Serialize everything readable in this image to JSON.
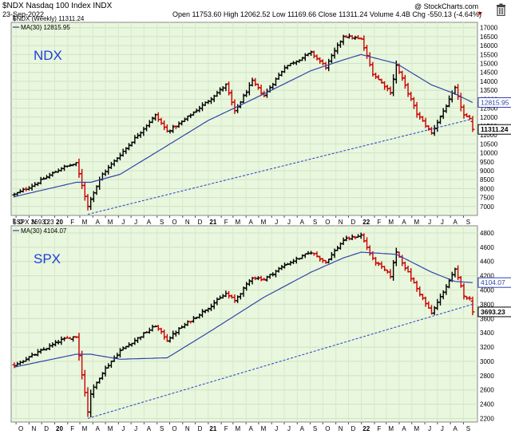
{
  "header": {
    "title": "$NDX Nasdaq 100 Index  INDX",
    "date": "23-Sep-2022",
    "quote": "Open 11753.60  High 12062.52  Low 11169.66  Close 11311.24  Volume 4.4B  Chg -550.13 (-4.64%)",
    "credit": "@ StockCharts.com"
  },
  "icons": {
    "delete": "trash-icon",
    "settings": "triangle-icon",
    "panel_handle": "pin-icon"
  },
  "colors": {
    "panel_bg": "#e8f7dd",
    "up": "#000000",
    "down": "#cc0000",
    "ma": "#3344aa",
    "trend": "#2a3bd0",
    "label": "#1f3fd6"
  },
  "chart_data": [
    {
      "type": "candlestick",
      "panel_label": "NDX",
      "legend": [
        "$NDX (Weekly) 11311.24",
        "MA(30) 12815.95"
      ],
      "ylim": [
        6500,
        17300
      ],
      "y_ticks": [
        7000,
        7500,
        8000,
        8500,
        9000,
        9500,
        10000,
        10500,
        11000,
        11500,
        12000,
        12500,
        13000,
        13500,
        14000,
        14500,
        15000,
        15500,
        16000,
        16500,
        17000
      ],
      "x_ticks": [
        "O",
        "N",
        "D",
        "20",
        "F",
        "M",
        "A",
        "M",
        "J",
        "J",
        "A",
        "S",
        "O",
        "N",
        "D",
        "21",
        "F",
        "M",
        "A",
        "M",
        "J",
        "J",
        "A",
        "S",
        "O",
        "N",
        "D",
        "22",
        "F",
        "M",
        "A",
        "M",
        "J",
        "J",
        "A",
        "S"
      ],
      "x_start": "2019-09-27",
      "x_end": "2022-09-23",
      "anchors": [
        [
          "2019-09-27",
          7660
        ],
        [
          "2019-11-15",
          8250
        ],
        [
          "2020-01-17",
          9150
        ],
        [
          "2020-02-21",
          9400
        ],
        [
          "2020-03-20",
          7000
        ],
        [
          "2020-03-27",
          7450
        ],
        [
          "2020-04-24",
          8800
        ],
        [
          "2020-06-05",
          9900
        ],
        [
          "2020-08-28",
          12100
        ],
        [
          "2020-09-25",
          11200
        ],
        [
          "2020-10-23",
          11600
        ],
        [
          "2020-12-31",
          12900
        ],
        [
          "2021-02-12",
          13800
        ],
        [
          "2021-03-05",
          12300
        ],
        [
          "2021-04-16",
          14000
        ],
        [
          "2021-05-14",
          13200
        ],
        [
          "2021-07-02",
          14800
        ],
        [
          "2021-09-03",
          15600
        ],
        [
          "2021-10-08",
          14800
        ],
        [
          "2021-11-19",
          16550
        ],
        [
          "2021-12-31",
          16350
        ],
        [
          "2022-01-28",
          14450
        ],
        [
          "2022-03-11",
          13400
        ],
        [
          "2022-03-25",
          14900
        ],
        [
          "2022-05-13",
          12200
        ],
        [
          "2022-06-17",
          11100
        ],
        [
          "2022-07-29",
          12950
        ],
        [
          "2022-08-12",
          13600
        ],
        [
          "2022-09-02",
          12100
        ],
        [
          "2022-09-16",
          11860
        ],
        [
          "2022-09-23",
          11311
        ]
      ],
      "last": {
        "open": 11753.6,
        "high": 12062.52,
        "low": 11169.66,
        "close": 11311.24
      },
      "ma_anchors": [
        [
          "2019-09-27",
          7550
        ],
        [
          "2020-02-21",
          8350
        ],
        [
          "2020-03-27",
          8350
        ],
        [
          "2020-06-05",
          8800
        ],
        [
          "2020-09-25",
          10400
        ],
        [
          "2020-12-31",
          11800
        ],
        [
          "2021-05-14",
          13300
        ],
        [
          "2021-09-03",
          14600
        ],
        [
          "2021-11-19",
          15200
        ],
        [
          "2021-12-31",
          15500
        ],
        [
          "2022-03-25",
          15000
        ],
        [
          "2022-06-17",
          13800
        ],
        [
          "2022-08-12",
          13300
        ],
        [
          "2022-09-23",
          12815.95
        ]
      ],
      "trendline": [
        [
          "2020-03-20",
          6560
        ],
        [
          "2022-09-23",
          11900
        ]
      ],
      "value_labels": [
        {
          "text": "12815.95",
          "value": 12815.95,
          "style": "ma"
        },
        {
          "text": "11311.24",
          "value": 11311.24,
          "style": "price"
        }
      ]
    },
    {
      "type": "candlestick",
      "panel_label": "SPX",
      "legend": [
        "$SPX 3693.23",
        "MA(30) 4104.07"
      ],
      "ylim": [
        2150,
        4900
      ],
      "y_ticks": [
        2200,
        2400,
        2600,
        2800,
        3000,
        3200,
        3400,
        3600,
        3800,
        4000,
        4200,
        4400,
        4600,
        4800
      ],
      "x_ticks": [
        "O",
        "N",
        "D",
        "20",
        "F",
        "M",
        "A",
        "M",
        "J",
        "J",
        "A",
        "S",
        "O",
        "N",
        "D",
        "21",
        "F",
        "M",
        "A",
        "M",
        "J",
        "J",
        "A",
        "S",
        "O",
        "N",
        "D",
        "22",
        "F",
        "M",
        "A",
        "M",
        "J",
        "J",
        "A",
        "S"
      ],
      "x_start": "2019-09-27",
      "x_end": "2022-09-23",
      "anchors": [
        [
          "2019-09-27",
          2950
        ],
        [
          "2019-11-15",
          3100
        ],
        [
          "2020-01-17",
          3300
        ],
        [
          "2020-02-21",
          3350
        ],
        [
          "2020-03-20",
          2300
        ],
        [
          "2020-03-27",
          2550
        ],
        [
          "2020-04-24",
          2850
        ],
        [
          "2020-06-05",
          3150
        ],
        [
          "2020-08-28",
          3500
        ],
        [
          "2020-09-25",
          3300
        ],
        [
          "2020-10-23",
          3450
        ],
        [
          "2020-12-31",
          3750
        ],
        [
          "2021-02-12",
          3950
        ],
        [
          "2021-03-05",
          3850
        ],
        [
          "2021-04-16",
          4180
        ],
        [
          "2021-05-14",
          4150
        ],
        [
          "2021-07-02",
          4350
        ],
        [
          "2021-09-03",
          4530
        ],
        [
          "2021-10-08",
          4390
        ],
        [
          "2021-11-19",
          4700
        ],
        [
          "2021-12-31",
          4770
        ],
        [
          "2022-01-28",
          4430
        ],
        [
          "2022-03-11",
          4200
        ],
        [
          "2022-03-25",
          4540
        ],
        [
          "2022-05-13",
          4020
        ],
        [
          "2022-06-17",
          3670
        ],
        [
          "2022-07-29",
          4130
        ],
        [
          "2022-08-12",
          4280
        ],
        [
          "2022-09-02",
          3930
        ],
        [
          "2022-09-16",
          3870
        ],
        [
          "2022-09-23",
          3693
        ]
      ],
      "last": {
        "open": 3844.0,
        "high": 3907.0,
        "low": 3647.0,
        "close": 3693.23
      },
      "ma_anchors": [
        [
          "2019-09-27",
          2920
        ],
        [
          "2020-02-21",
          3100
        ],
        [
          "2020-03-27",
          3100
        ],
        [
          "2020-06-05",
          3030
        ],
        [
          "2020-09-25",
          3050
        ],
        [
          "2020-12-31",
          3400
        ],
        [
          "2021-05-14",
          3900
        ],
        [
          "2021-09-03",
          4250
        ],
        [
          "2021-11-19",
          4450
        ],
        [
          "2021-12-31",
          4530
        ],
        [
          "2022-03-25",
          4500
        ],
        [
          "2022-06-17",
          4250
        ],
        [
          "2022-08-12",
          4120
        ],
        [
          "2022-09-23",
          4104.07
        ]
      ],
      "trendline": [
        [
          "2020-03-20",
          2200
        ],
        [
          "2022-09-23",
          3800
        ]
      ],
      "value_labels": [
        {
          "text": "4104.07",
          "value": 4104.07,
          "style": "ma"
        },
        {
          "text": "3693.23",
          "value": 3693.23,
          "style": "price"
        }
      ]
    }
  ]
}
